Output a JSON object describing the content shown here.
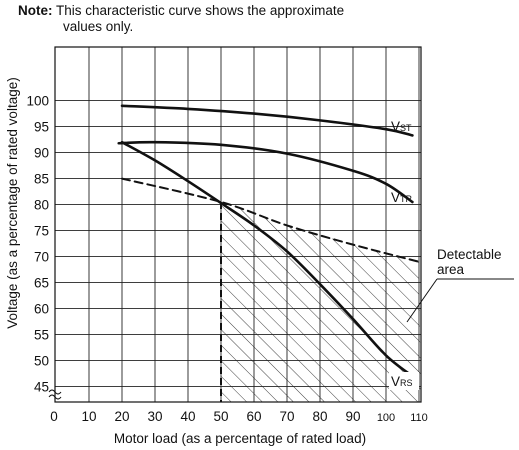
{
  "note": {
    "label": "Note:",
    "line1": "This characteristic curve shows the approximate",
    "line2": "values only."
  },
  "chart_data": {
    "type": "line",
    "xlabel": "Motor load (as a percentage of rated load)",
    "ylabel": "Voltage (as a percentage of rated voltage)",
    "x_ticks": [
      "0",
      "10",
      "20",
      "30",
      "40",
      "50",
      "60",
      "70",
      "80",
      "90",
      "100",
      "110"
    ],
    "y_ticks": [
      "45",
      "50",
      "55",
      "60",
      "65",
      "70",
      "75",
      "80",
      "85",
      "90",
      "95",
      "100"
    ],
    "xlim": [
      0,
      110
    ],
    "ylim": [
      42,
      103
    ],
    "axis_break": "y",
    "grid": true,
    "series": [
      {
        "name_main": "V",
        "name_sub": "ST",
        "style": "solid",
        "x": [
          20,
          40,
          60,
          80,
          100,
          108
        ],
        "y": [
          99,
          98.4,
          97.5,
          96.2,
          94.5,
          93.3
        ]
      },
      {
        "name_main": "V",
        "name_sub": "TR",
        "style": "solid",
        "x": [
          19,
          30,
          50,
          70,
          90,
          100,
          108
        ],
        "y": [
          91.8,
          92,
          91.5,
          89.8,
          86.5,
          84,
          80.5
        ]
      },
      {
        "name_main": "V",
        "name_sub": "RS",
        "style": "solid",
        "x": [
          20,
          30,
          40,
          50,
          60,
          70,
          80,
          90,
          100,
          108
        ],
        "y": [
          92,
          88.5,
          84.5,
          80.3,
          76,
          71,
          64.7,
          58,
          51,
          47
        ]
      },
      {
        "name_main": "",
        "name_sub": "",
        "style": "dashed",
        "x": [
          20,
          50,
          70,
          90,
          110
        ],
        "y": [
          85,
          80.5,
          76,
          72.3,
          69
        ]
      }
    ],
    "boundary": {
      "x": 50,
      "from_y": 42,
      "to_y": 80.5,
      "style": "dashed"
    },
    "annotation": {
      "line1": "Detectable",
      "line2": "area"
    }
  }
}
